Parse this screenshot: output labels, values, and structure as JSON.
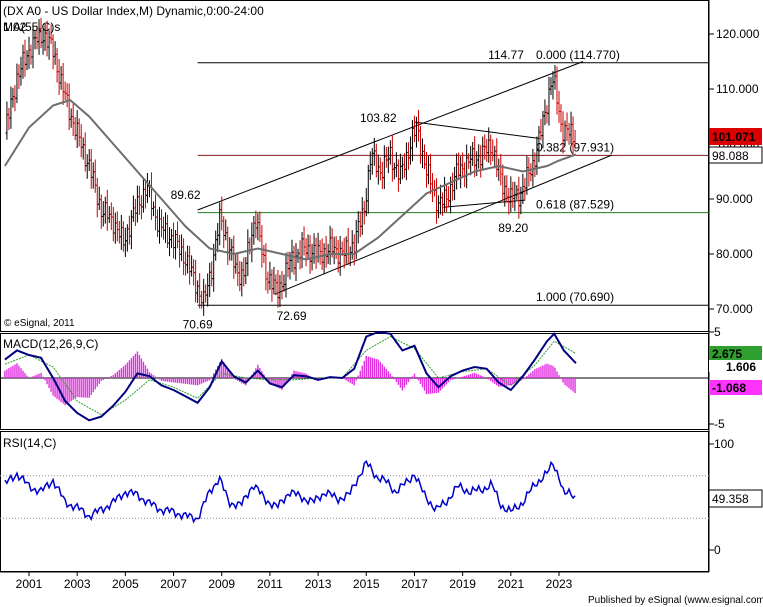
{
  "chart_data": [
    {
      "type": "candlestick",
      "title": "(DX A0 - US Dollar Index,M) Dynamic,0:00-24:00",
      "subtitle": "MA(55,C)s",
      "corner_value": "1.02",
      "copyright": "© eSignal, 2011",
      "ylim": [
        66,
        124
      ],
      "y_ticks": [
        "120.000",
        "110.000",
        "100.000",
        "90.000",
        "80.000",
        "70.000"
      ],
      "y_tick_values": [
        120,
        110,
        100,
        90,
        80,
        70
      ],
      "price_label": "101.071",
      "price_value": 101.071,
      "ma_label": "98.088",
      "ma_value": 98.088,
      "colors": {
        "up": "#000000",
        "down": "#cc0000",
        "ma": "#6e6e6e",
        "price_tag": "#dd0000",
        "fib_mid": "#8b1a1a",
        "fib_low": "#1e7b1e"
      },
      "series_close": [
        {
          "t": 2000.0,
          "v": 102
        },
        {
          "t": 2000.5,
          "v": 112
        },
        {
          "t": 2001.1,
          "v": 118
        },
        {
          "t": 2001.6,
          "v": 120
        },
        {
          "t": 2002.0,
          "v": 117
        },
        {
          "t": 2002.4,
          "v": 110
        },
        {
          "t": 2002.9,
          "v": 103
        },
        {
          "t": 2003.5,
          "v": 96
        },
        {
          "t": 2004.0,
          "v": 88
        },
        {
          "t": 2004.5,
          "v": 86
        },
        {
          "t": 2004.9,
          "v": 82
        },
        {
          "t": 2005.5,
          "v": 89
        },
        {
          "t": 2005.9,
          "v": 92
        },
        {
          "t": 2006.4,
          "v": 85
        },
        {
          "t": 2006.9,
          "v": 83
        },
        {
          "t": 2007.4,
          "v": 80
        },
        {
          "t": 2007.9,
          "v": 75
        },
        {
          "t": 2008.25,
          "v": 71
        },
        {
          "t": 2008.6,
          "v": 78
        },
        {
          "t": 2008.95,
          "v": 87
        },
        {
          "t": 2009.3,
          "v": 81
        },
        {
          "t": 2009.6,
          "v": 77
        },
        {
          "t": 2009.9,
          "v": 76
        },
        {
          "t": 2010.4,
          "v": 87
        },
        {
          "t": 2010.8,
          "v": 77
        },
        {
          "t": 2011.3,
          "v": 73
        },
        {
          "t": 2011.9,
          "v": 79
        },
        {
          "t": 2012.4,
          "v": 81
        },
        {
          "t": 2013.0,
          "v": 80
        },
        {
          "t": 2013.6,
          "v": 81
        },
        {
          "t": 2014.1,
          "v": 80
        },
        {
          "t": 2014.5,
          "v": 82
        },
        {
          "t": 2014.9,
          "v": 88
        },
        {
          "t": 2015.2,
          "v": 98
        },
        {
          "t": 2015.6,
          "v": 95
        },
        {
          "t": 2016.0,
          "v": 98
        },
        {
          "t": 2016.4,
          "v": 94
        },
        {
          "t": 2016.9,
          "v": 101
        },
        {
          "t": 2017.1,
          "v": 103
        },
        {
          "t": 2017.5,
          "v": 95
        },
        {
          "t": 2018.0,
          "v": 89
        },
        {
          "t": 2018.3,
          "v": 90
        },
        {
          "t": 2018.8,
          "v": 95
        },
        {
          "t": 2019.3,
          "v": 97
        },
        {
          "t": 2019.8,
          "v": 98
        },
        {
          "t": 2020.2,
          "v": 100
        },
        {
          "t": 2020.6,
          "v": 93
        },
        {
          "t": 2021.0,
          "v": 90
        },
        {
          "t": 2021.4,
          "v": 91
        },
        {
          "t": 2021.9,
          "v": 96
        },
        {
          "t": 2022.3,
          "v": 103
        },
        {
          "t": 2022.7,
          "v": 112
        },
        {
          "t": 2022.85,
          "v": 110
        },
        {
          "t": 2023.1,
          "v": 103
        },
        {
          "t": 2023.4,
          "v": 102
        },
        {
          "t": 2023.7,
          "v": 101
        }
      ],
      "ma55": [
        {
          "t": 2000.0,
          "v": 96
        },
        {
          "t": 2001.0,
          "v": 103
        },
        {
          "t": 2002.0,
          "v": 107
        },
        {
          "t": 2002.7,
          "v": 108
        },
        {
          "t": 2003.5,
          "v": 105
        },
        {
          "t": 2004.5,
          "v": 100
        },
        {
          "t": 2005.5,
          "v": 95
        },
        {
          "t": 2006.5,
          "v": 90
        },
        {
          "t": 2007.5,
          "v": 85
        },
        {
          "t": 2008.5,
          "v": 81
        },
        {
          "t": 2009.5,
          "v": 80
        },
        {
          "t": 2010.5,
          "v": 81
        },
        {
          "t": 2011.5,
          "v": 80
        },
        {
          "t": 2012.5,
          "v": 79
        },
        {
          "t": 2013.5,
          "v": 80
        },
        {
          "t": 2014.5,
          "v": 80
        },
        {
          "t": 2015.5,
          "v": 83
        },
        {
          "t": 2016.5,
          "v": 87
        },
        {
          "t": 2017.5,
          "v": 91
        },
        {
          "t": 2018.5,
          "v": 93
        },
        {
          "t": 2019.5,
          "v": 95
        },
        {
          "t": 2020.5,
          "v": 96
        },
        {
          "t": 2021.5,
          "v": 95
        },
        {
          "t": 2022.5,
          "v": 96
        },
        {
          "t": 2023.0,
          "v": 97
        },
        {
          "t": 2023.7,
          "v": 98.088
        }
      ],
      "fib_levels": [
        {
          "label": "0.000 (114.770)",
          "value": 114.77
        },
        {
          "label": "0.382 (97.931)",
          "value": 97.931
        },
        {
          "label": "0.618 (87.529)",
          "value": 87.529
        },
        {
          "label": "1.000 (70.690)",
          "value": 70.69
        }
      ],
      "annotations": [
        {
          "text": "114.77",
          "t": 2020.8,
          "v": 115.5
        },
        {
          "text": "103.82",
          "t": 2015.5,
          "v": 104.0
        },
        {
          "text": "89.62",
          "t": 2007.5,
          "v": 90.0
        },
        {
          "text": "89.20",
          "t": 2021.1,
          "v": 84.0
        },
        {
          "text": "72.69",
          "t": 2011.9,
          "v": 68.0
        },
        {
          "text": "70.69",
          "t": 2008.0,
          "v": 66.5
        }
      ],
      "channel_upper": [
        {
          "t": 2008.0,
          "v": 88
        },
        {
          "t": 2024.0,
          "v": 115
        }
      ],
      "channel_lower": [
        {
          "t": 2011.2,
          "v": 72.7
        },
        {
          "t": 2025.2,
          "v": 98
        }
      ],
      "triangle_top": [
        {
          "t": 2017.0,
          "v": 104
        },
        {
          "t": 2022.2,
          "v": 101
        }
      ],
      "triangle_bottom": [
        {
          "t": 2018.2,
          "v": 88.5
        },
        {
          "t": 2021.6,
          "v": 89.8
        }
      ]
    },
    {
      "type": "line",
      "title": "MACD(12,26,9,C)",
      "ylim": [
        -6.2,
        6.2
      ],
      "y_ticks": [
        "5",
        "-5"
      ],
      "y_tick_values": [
        5,
        -5
      ],
      "labels": [
        {
          "text": "2.675",
          "value": 2.675,
          "bg": "#2f9f2f",
          "fg": "#ffffff"
        },
        {
          "text": "1.606",
          "value": 1.606,
          "bg": "#ffffff",
          "fg": "#000000"
        },
        {
          "text": "-1.068",
          "value": -1.068,
          "bg": "#ff33ff",
          "fg": "#ffffff"
        }
      ],
      "macd": [
        {
          "t": 2000.0,
          "v": 2.0
        },
        {
          "t": 2000.5,
          "v": 3.0
        },
        {
          "t": 2001.0,
          "v": 2.5
        },
        {
          "t": 2001.5,
          "v": 2.2
        },
        {
          "t": 2002.0,
          "v": 0
        },
        {
          "t": 2002.5,
          "v": -2.5
        },
        {
          "t": 2003.0,
          "v": -3.8
        },
        {
          "t": 2003.5,
          "v": -4.6
        },
        {
          "t": 2004.0,
          "v": -4.2
        },
        {
          "t": 2004.5,
          "v": -3.0
        },
        {
          "t": 2005.0,
          "v": -1.5
        },
        {
          "t": 2005.5,
          "v": 0.5
        },
        {
          "t": 2006.0,
          "v": 0.2
        },
        {
          "t": 2006.5,
          "v": -0.8
        },
        {
          "t": 2007.0,
          "v": -1.3
        },
        {
          "t": 2007.5,
          "v": -2.0
        },
        {
          "t": 2008.0,
          "v": -2.7
        },
        {
          "t": 2008.5,
          "v": -1.0
        },
        {
          "t": 2009.0,
          "v": 1.8
        },
        {
          "t": 2009.5,
          "v": 0.2
        },
        {
          "t": 2010.0,
          "v": -0.5
        },
        {
          "t": 2010.5,
          "v": 0.8
        },
        {
          "t": 2011.0,
          "v": -0.6
        },
        {
          "t": 2011.5,
          "v": -1.0
        },
        {
          "t": 2012.0,
          "v": 0.3
        },
        {
          "t": 2012.5,
          "v": 0.2
        },
        {
          "t": 2013.0,
          "v": -0.2
        },
        {
          "t": 2013.5,
          "v": 0.1
        },
        {
          "t": 2014.0,
          "v": 0
        },
        {
          "t": 2014.5,
          "v": 1.0
        },
        {
          "t": 2015.0,
          "v": 4.5
        },
        {
          "t": 2015.5,
          "v": 5.0
        },
        {
          "t": 2016.0,
          "v": 4.8
        },
        {
          "t": 2016.5,
          "v": 3.0
        },
        {
          "t": 2017.0,
          "v": 3.5
        },
        {
          "t": 2017.5,
          "v": 0.5
        },
        {
          "t": 2018.0,
          "v": -1.0
        },
        {
          "t": 2018.5,
          "v": 0.2
        },
        {
          "t": 2019.0,
          "v": 0.8
        },
        {
          "t": 2019.5,
          "v": 1.2
        },
        {
          "t": 2020.0,
          "v": 1.0
        },
        {
          "t": 2020.5,
          "v": -0.5
        },
        {
          "t": 2021.0,
          "v": -1.3
        },
        {
          "t": 2021.5,
          "v": 0.2
        },
        {
          "t": 2022.0,
          "v": 2.0
        },
        {
          "t": 2022.5,
          "v": 4.0
        },
        {
          "t": 2022.8,
          "v": 4.8
        },
        {
          "t": 2023.2,
          "v": 3.0
        },
        {
          "t": 2023.7,
          "v": 1.606
        }
      ],
      "signal": [
        {
          "t": 2000.0,
          "v": 1.5
        },
        {
          "t": 2001.0,
          "v": 2.5
        },
        {
          "t": 2002.0,
          "v": 1.2
        },
        {
          "t": 2003.0,
          "v": -2.5
        },
        {
          "t": 2004.0,
          "v": -4.0
        },
        {
          "t": 2005.0,
          "v": -2.4
        },
        {
          "t": 2006.0,
          "v": -0.2
        },
        {
          "t": 2007.0,
          "v": -1.0
        },
        {
          "t": 2008.0,
          "v": -2.2
        },
        {
          "t": 2009.0,
          "v": 0.5
        },
        {
          "t": 2010.0,
          "v": 0
        },
        {
          "t": 2011.0,
          "v": -0.2
        },
        {
          "t": 2012.0,
          "v": -0.2
        },
        {
          "t": 2013.0,
          "v": 0
        },
        {
          "t": 2014.0,
          "v": 0
        },
        {
          "t": 2015.0,
          "v": 3.0
        },
        {
          "t": 2016.0,
          "v": 4.5
        },
        {
          "t": 2017.0,
          "v": 3.2
        },
        {
          "t": 2018.0,
          "v": 0
        },
        {
          "t": 2019.0,
          "v": 0.7
        },
        {
          "t": 2020.0,
          "v": 1.0
        },
        {
          "t": 2021.0,
          "v": -0.8
        },
        {
          "t": 2022.0,
          "v": 1.4
        },
        {
          "t": 2022.8,
          "v": 4.0
        },
        {
          "t": 2023.7,
          "v": 2.675
        }
      ]
    },
    {
      "type": "line",
      "title": "RSI(14,C)",
      "ylim": [
        -8,
        108
      ],
      "y_ticks": [
        "100",
        "50",
        "0"
      ],
      "y_tick_values": [
        100,
        50,
        0
      ],
      "label": "49.358",
      "value": 49.358,
      "guides": [
        70,
        30
      ],
      "rsi": [
        {
          "t": 2000.0,
          "v": 62
        },
        {
          "t": 2000.5,
          "v": 72
        },
        {
          "t": 2001.0,
          "v": 60
        },
        {
          "t": 2001.5,
          "v": 55
        },
        {
          "t": 2002.0,
          "v": 66
        },
        {
          "t": 2002.5,
          "v": 45
        },
        {
          "t": 2003.0,
          "v": 40
        },
        {
          "t": 2003.5,
          "v": 32
        },
        {
          "t": 2004.0,
          "v": 38
        },
        {
          "t": 2004.5,
          "v": 45
        },
        {
          "t": 2005.0,
          "v": 55
        },
        {
          "t": 2005.5,
          "v": 52
        },
        {
          "t": 2006.0,
          "v": 44
        },
        {
          "t": 2006.5,
          "v": 38
        },
        {
          "t": 2007.0,
          "v": 36
        },
        {
          "t": 2007.5,
          "v": 32
        },
        {
          "t": 2008.0,
          "v": 30
        },
        {
          "t": 2008.5,
          "v": 55
        },
        {
          "t": 2008.9,
          "v": 68
        },
        {
          "t": 2009.3,
          "v": 45
        },
        {
          "t": 2009.8,
          "v": 42
        },
        {
          "t": 2010.3,
          "v": 62
        },
        {
          "t": 2010.8,
          "v": 48
        },
        {
          "t": 2011.3,
          "v": 40
        },
        {
          "t": 2011.8,
          "v": 55
        },
        {
          "t": 2012.3,
          "v": 50
        },
        {
          "t": 2012.8,
          "v": 45
        },
        {
          "t": 2013.3,
          "v": 55
        },
        {
          "t": 2013.8,
          "v": 48
        },
        {
          "t": 2014.3,
          "v": 52
        },
        {
          "t": 2014.7,
          "v": 70
        },
        {
          "t": 2015.0,
          "v": 82
        },
        {
          "t": 2015.4,
          "v": 70
        },
        {
          "t": 2015.8,
          "v": 65
        },
        {
          "t": 2016.2,
          "v": 55
        },
        {
          "t": 2016.7,
          "v": 64
        },
        {
          "t": 2017.0,
          "v": 72
        },
        {
          "t": 2017.4,
          "v": 52
        },
        {
          "t": 2017.9,
          "v": 38
        },
        {
          "t": 2018.3,
          "v": 45
        },
        {
          "t": 2018.8,
          "v": 60
        },
        {
          "t": 2019.3,
          "v": 55
        },
        {
          "t": 2019.8,
          "v": 57
        },
        {
          "t": 2020.2,
          "v": 62
        },
        {
          "t": 2020.6,
          "v": 42
        },
        {
          "t": 2021.0,
          "v": 36
        },
        {
          "t": 2021.5,
          "v": 45
        },
        {
          "t": 2022.0,
          "v": 62
        },
        {
          "t": 2022.5,
          "v": 72
        },
        {
          "t": 2022.75,
          "v": 82
        },
        {
          "t": 2023.0,
          "v": 70
        },
        {
          "t": 2023.2,
          "v": 52
        },
        {
          "t": 2023.5,
          "v": 54
        },
        {
          "t": 2023.7,
          "v": 49.358
        }
      ]
    }
  ],
  "x_ticks": [
    "2001",
    "2003",
    "2005",
    "2007",
    "2009",
    "2011",
    "2013",
    "2015",
    "2017",
    "2019",
    "2021",
    "2023"
  ],
  "x_tick_values": [
    2001,
    2003,
    2005,
    2007,
    2009,
    2011,
    2013,
    2015,
    2017,
    2019,
    2021,
    2023
  ],
  "footer": "Published by eSignal (www.esignal.com)"
}
